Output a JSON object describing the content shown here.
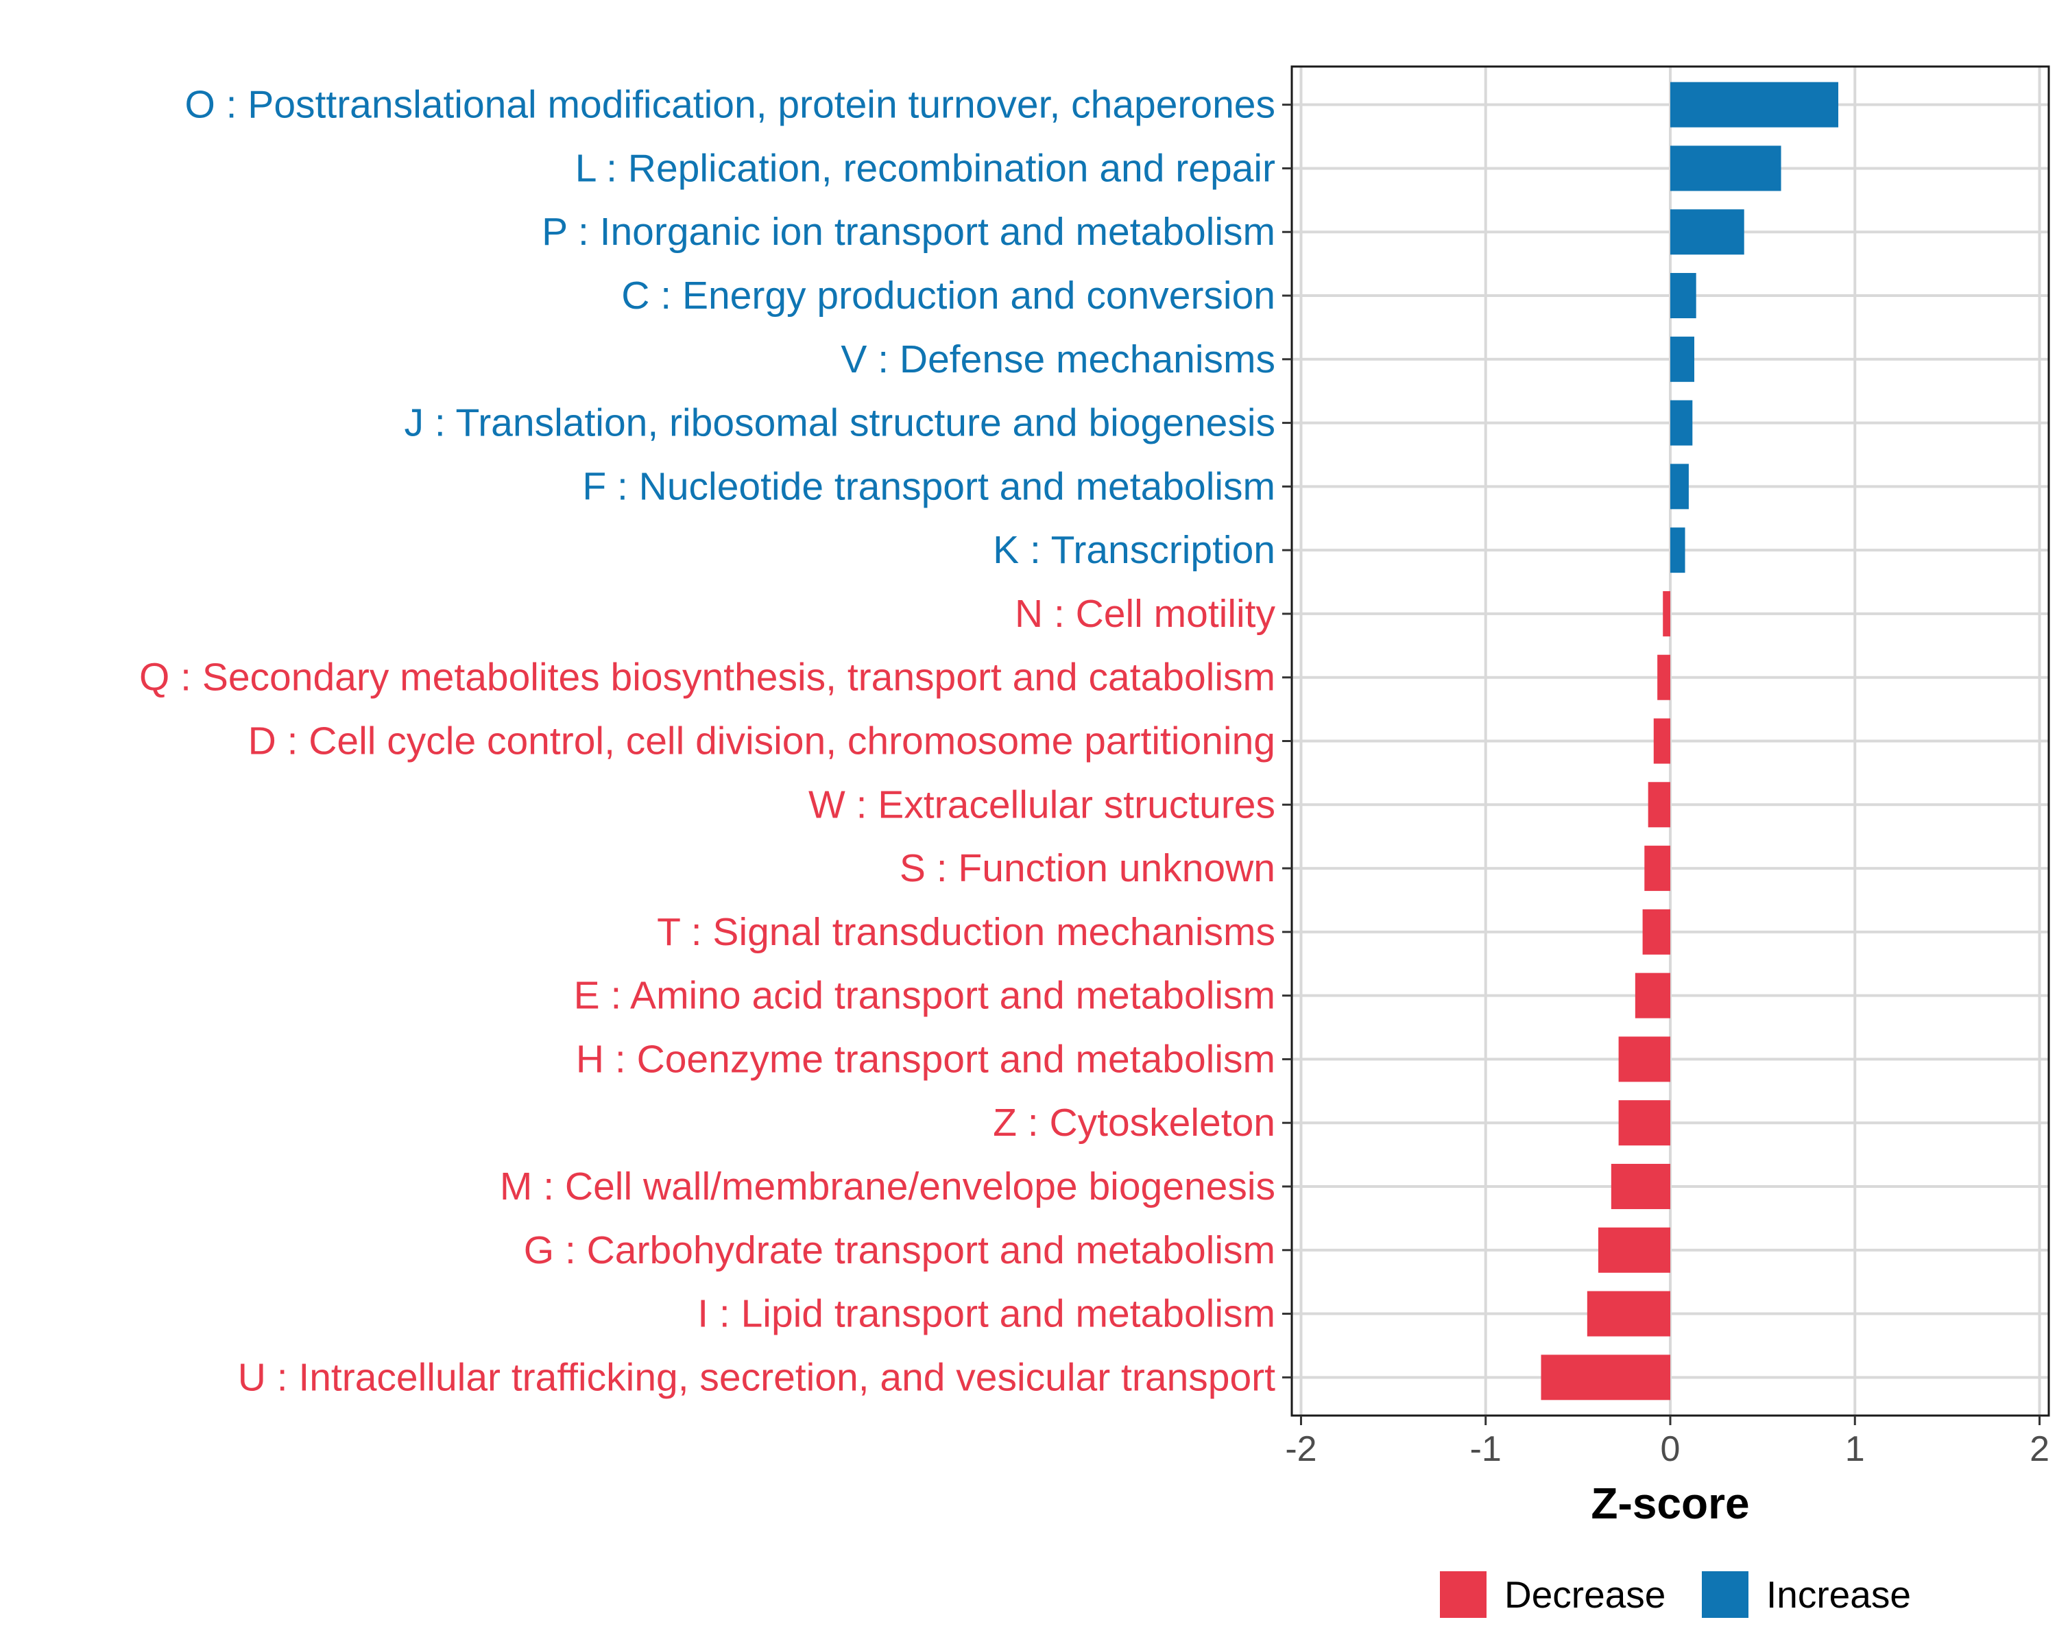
{
  "chart_data": {
    "type": "bar",
    "orientation": "horizontal",
    "title": "",
    "xlabel": "Z-score",
    "ylabel": "",
    "xlim": [
      -2.05,
      2.05
    ],
    "xticks": [
      -2,
      -1,
      0,
      1,
      2
    ],
    "grid": true,
    "legend_position": "bottom",
    "colors": {
      "Increase": "#0f75b3",
      "Decrease": "#e8394b"
    },
    "legend": [
      {
        "name": "Decrease",
        "color": "#e8394b"
      },
      {
        "name": "Increase",
        "color": "#0f75b3"
      }
    ],
    "categories": [
      "O : Posttranslational modification, protein turnover, chaperones",
      "L : Replication, recombination and repair",
      "P : Inorganic ion transport and metabolism",
      "C : Energy production and conversion",
      "V : Defense mechanisms",
      "J : Translation, ribosomal structure and biogenesis",
      "F : Nucleotide transport and metabolism",
      "K : Transcription",
      "N : Cell motility",
      "Q : Secondary metabolites biosynthesis, transport and catabolism",
      "D : Cell cycle control, cell division, chromosome partitioning",
      "W : Extracellular structures",
      "S : Function unknown",
      "T : Signal transduction mechanisms",
      "E : Amino acid transport and metabolism",
      "H : Coenzyme transport and metabolism",
      "Z : Cytoskeleton",
      "M : Cell wall/membrane/envelope biogenesis",
      "G : Carbohydrate transport and metabolism",
      "I : Lipid transport and metabolism",
      "U : Intracellular trafficking, secretion, and vesicular transport"
    ],
    "values": [
      0.91,
      0.6,
      0.4,
      0.14,
      0.13,
      0.12,
      0.1,
      0.08,
      -0.04,
      -0.07,
      -0.09,
      -0.12,
      -0.14,
      -0.15,
      -0.19,
      -0.28,
      -0.28,
      -0.32,
      -0.39,
      -0.45,
      -0.7
    ],
    "groups": [
      "Increase",
      "Increase",
      "Increase",
      "Increase",
      "Increase",
      "Increase",
      "Increase",
      "Increase",
      "Decrease",
      "Decrease",
      "Decrease",
      "Decrease",
      "Decrease",
      "Decrease",
      "Decrease",
      "Decrease",
      "Decrease",
      "Decrease",
      "Decrease",
      "Decrease",
      "Decrease"
    ]
  }
}
